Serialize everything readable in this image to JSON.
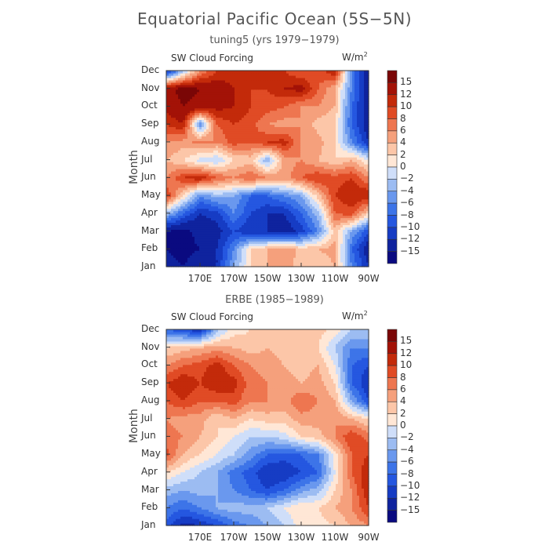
{
  "title": "Equatorial Pacific Ocean (5S−5N)",
  "colorbar": {
    "labels": [
      "15",
      "12",
      "10",
      "8",
      "6",
      "4",
      "2",
      "0",
      "−2",
      "−4",
      "−6",
      "−8",
      "−10",
      "−12",
      "−15"
    ],
    "levels": [
      -15,
      -12,
      -10,
      -8,
      -6,
      -4,
      -2,
      0,
      2,
      4,
      6,
      8,
      10,
      12,
      15
    ],
    "colors": [
      "#0a0a80",
      "#0f239e",
      "#163cc4",
      "#2557e0",
      "#3d74e8",
      "#6a98ee",
      "#9cbcf2",
      "#cfdef9",
      "#ffe7d6",
      "#fcc6a8",
      "#f5a07c",
      "#ee7650",
      "#e04b25",
      "#c32a0a",
      "#a31207",
      "#7a0606"
    ]
  },
  "chart_data": [
    {
      "type": "heatmap",
      "title": "tuning5 (yrs 1979−1979)",
      "variable": "SW Cloud Forcing",
      "units_base": "W/m",
      "units_exp": "2",
      "ylabel": "Month",
      "x_ticks": [
        "170E",
        "170W",
        "150W",
        "130W",
        "110W",
        "90W"
      ],
      "y_ticks": [
        "Jan",
        "Feb",
        "Mar",
        "Apr",
        "May",
        "Jun",
        "Jul",
        "Aug",
        "Sep",
        "Oct",
        "Nov",
        "Dec"
      ],
      "x_lon": [
        "150E",
        "160E",
        "170E",
        "180",
        "170W",
        "160W",
        "150W",
        "140W",
        "130W",
        "120W",
        "110W",
        "100W",
        "90W"
      ],
      "y_month": [
        "Jan",
        "Feb",
        "Mar",
        "Apr",
        "May",
        "Jun",
        "Jul",
        "Aug",
        "Sep",
        "Oct",
        "Nov",
        "Dec"
      ],
      "values": [
        [
          -14,
          -15,
          -13,
          -12,
          -4,
          2,
          4,
          5,
          3,
          2,
          4,
          -6,
          -12
        ],
        [
          -15,
          -16,
          -15,
          -12,
          -6,
          2,
          4,
          6,
          3,
          4,
          5,
          -8,
          -14
        ],
        [
          -15,
          -16,
          -14,
          -13,
          -10,
          -12,
          -12,
          -14,
          -11,
          -6,
          3,
          -4,
          -10
        ],
        [
          -3,
          -8,
          -12,
          -11,
          -6,
          -10,
          -12,
          -12,
          -8,
          -3,
          8,
          9,
          2
        ],
        [
          10,
          2,
          -6,
          -3,
          -4,
          -8,
          -8,
          -6,
          -4,
          3,
          10,
          12,
          12
        ],
        [
          6,
          10,
          12,
          8,
          6,
          8,
          6,
          5,
          8,
          10,
          9,
          10,
          6
        ],
        [
          4,
          2,
          -1,
          -2,
          2,
          3,
          -4,
          5,
          6,
          4,
          2,
          4,
          0
        ],
        [
          6,
          5,
          7,
          6,
          9,
          8,
          10,
          11,
          6,
          5,
          2,
          -6,
          -12
        ],
        [
          10,
          12,
          -6,
          8,
          10,
          9,
          6,
          5,
          6,
          3,
          2,
          -8,
          -14
        ],
        [
          13,
          15,
          14,
          13,
          12,
          10,
          9,
          8,
          6,
          6,
          4,
          -8,
          -14
        ],
        [
          14,
          16,
          15,
          14,
          12,
          10,
          10,
          12,
          13,
          8,
          4,
          -6,
          -15
        ],
        [
          -12,
          -3,
          6,
          10,
          11,
          12,
          12,
          10,
          8,
          9,
          12,
          -6,
          -15
        ]
      ]
    },
    {
      "type": "heatmap",
      "title": "ERBE (1985−1989)",
      "variable": "SW Cloud Forcing",
      "units_base": "W/m",
      "units_exp": "2",
      "ylabel": "Month",
      "x_ticks": [
        "170E",
        "170W",
        "150W",
        "130W",
        "110W",
        "90W"
      ],
      "y_ticks": [
        "Jan",
        "Feb",
        "Mar",
        "Apr",
        "May",
        "Jun",
        "Jul",
        "Aug",
        "Sep",
        "Oct",
        "Nov",
        "Dec"
      ],
      "x_lon": [
        "150E",
        "160E",
        "170E",
        "180",
        "170W",
        "160W",
        "150W",
        "140W",
        "130W",
        "120W",
        "110W",
        "100W",
        "90W"
      ],
      "y_month": [
        "Jan",
        "Feb",
        "Mar",
        "Apr",
        "May",
        "Jun",
        "Jul",
        "Aug",
        "Sep",
        "Oct",
        "Nov",
        "Dec"
      ],
      "values": [
        [
          -9,
          -13,
          -12,
          -10,
          -7,
          -6,
          -4,
          -2,
          1,
          1,
          2,
          4,
          6
        ],
        [
          -6,
          -8,
          -6,
          -4,
          -3,
          -3,
          -2,
          0,
          2,
          2,
          4,
          6,
          10
        ],
        [
          -3,
          -4,
          -3,
          -4,
          -6,
          -8,
          -10,
          -8,
          -5,
          -3,
          2,
          6,
          12
        ],
        [
          2,
          0,
          -2,
          -4,
          -7,
          -9,
          -12,
          -12,
          -10,
          -8,
          0,
          8,
          12
        ],
        [
          9,
          4,
          2,
          0,
          -2,
          -5,
          -8,
          -9,
          -8,
          -6,
          1,
          8,
          10
        ],
        [
          7,
          6,
          4,
          2,
          0,
          -2,
          -2,
          -1,
          2,
          3,
          6,
          10,
          7
        ],
        [
          6,
          5,
          5,
          2,
          4,
          2,
          3,
          3,
          5,
          5,
          6,
          4,
          2
        ],
        [
          8,
          10,
          8,
          8,
          9,
          6,
          6,
          5,
          8,
          6,
          4,
          -4,
          -10
        ],
        [
          10,
          12,
          10,
          12,
          11,
          7,
          6,
          5,
          4,
          5,
          2,
          -8,
          -12
        ],
        [
          6,
          8,
          9,
          11,
          8,
          6,
          5,
          4,
          3,
          4,
          0,
          -8,
          -10
        ],
        [
          2,
          3,
          4,
          5,
          4,
          3,
          4,
          3,
          2,
          2,
          -2,
          -6,
          -6
        ],
        [
          -8,
          -10,
          -12,
          -3,
          1,
          2,
          2,
          3,
          2,
          3,
          1,
          -2,
          -2
        ]
      ]
    }
  ]
}
